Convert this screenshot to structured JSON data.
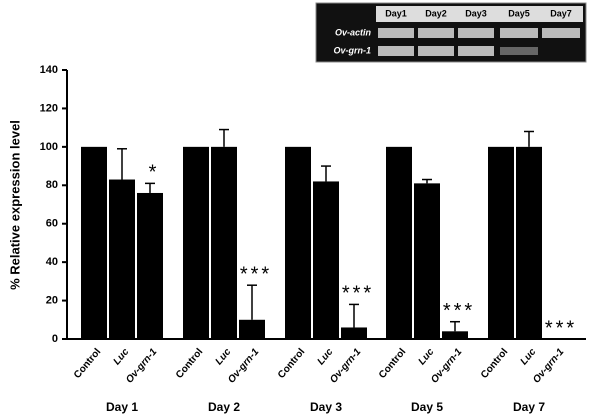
{
  "chart_data": {
    "type": "bar",
    "y_label": "% Relative expression level",
    "categories": [
      "Day 1",
      "Day 2",
      "Day 3",
      "Day 5",
      "Day 7"
    ],
    "series": [
      {
        "name": "Control",
        "color": "#000000",
        "values": [
          100,
          100,
          100,
          100,
          100
        ]
      },
      {
        "name": "Luc",
        "color": "#000000",
        "values": [
          83,
          100,
          82,
          81,
          100
        ],
        "errors": [
          16,
          9,
          8,
          2,
          8
        ]
      },
      {
        "name": "Ov-grn-1",
        "color": "#000000",
        "values": [
          76,
          10,
          6,
          4,
          0
        ],
        "errors": [
          5,
          18,
          12,
          5,
          0
        ],
        "significance": [
          "*",
          "***",
          "***",
          "***",
          "***"
        ]
      }
    ],
    "ylim": [
      0,
      140
    ],
    "yticks": [
      0,
      20,
      40,
      60,
      80,
      100,
      120,
      140
    ],
    "grid": false
  },
  "inset": {
    "lanes": [
      "Day1",
      "Day2",
      "Day3",
      "Day5",
      "Day7"
    ],
    "rows": [
      "Ov-actin",
      "Ov-grn-1"
    ]
  }
}
